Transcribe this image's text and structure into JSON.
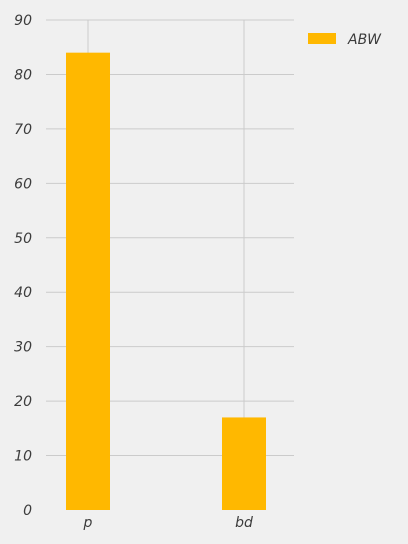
{
  "chart_data": {
    "type": "bar",
    "categories": [
      "p",
      "bd"
    ],
    "series": [
      {
        "name": "ABW",
        "values": [
          84,
          17
        ]
      }
    ],
    "ylim": [
      0,
      90
    ],
    "yticks": [
      0,
      10,
      20,
      30,
      40,
      50,
      60,
      70,
      80,
      90
    ],
    "grid": true,
    "legend_position": "top-right",
    "colors": {
      "bar": "#ffb800",
      "background": "#f0f0f0",
      "grid": "#cbcbcb",
      "text": "#3c3c3c"
    }
  }
}
